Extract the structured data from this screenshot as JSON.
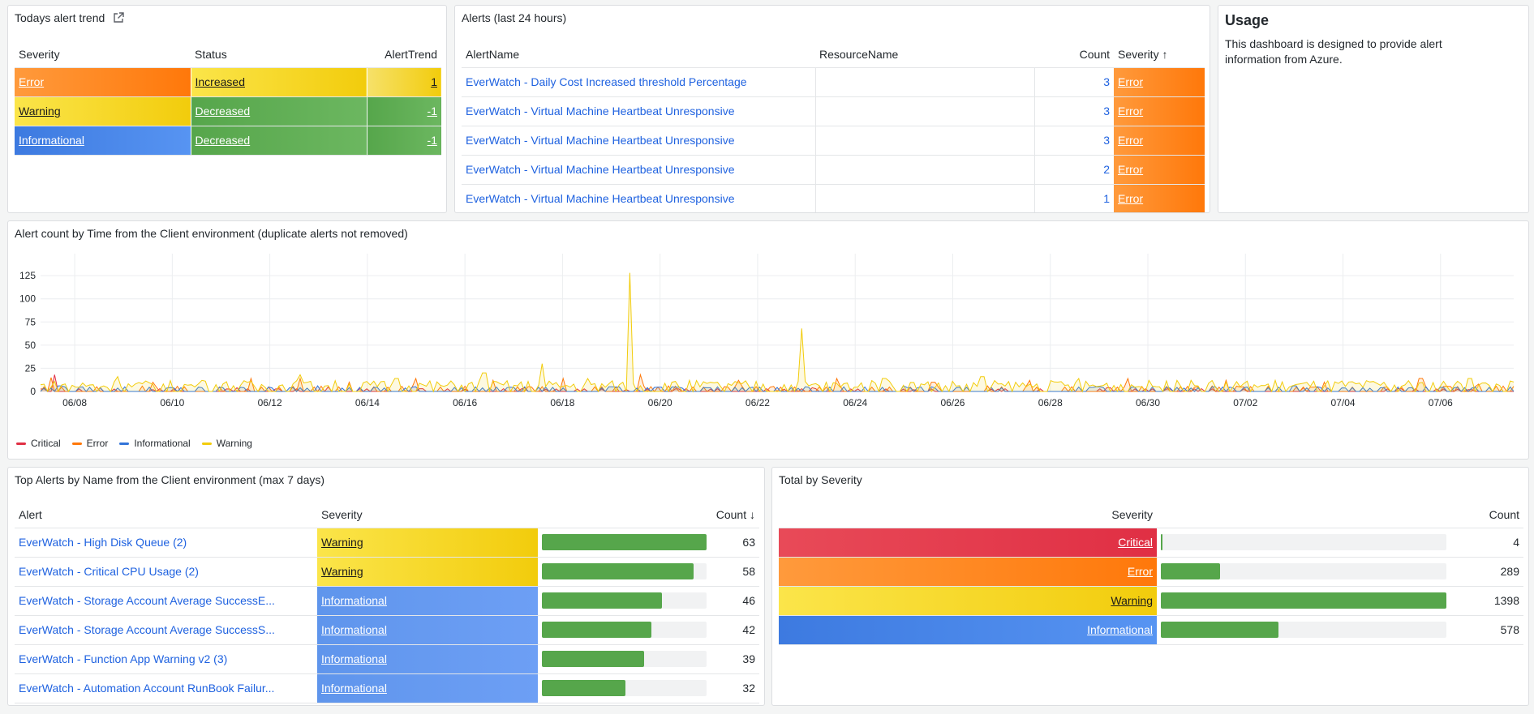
{
  "alert_trend": {
    "title": "Todays alert trend",
    "headers": [
      "Severity",
      "Status",
      "AlertTrend"
    ],
    "rows": [
      {
        "severity": "Error",
        "status": "Increased",
        "trend": "1"
      },
      {
        "severity": "Warning",
        "status": "Decreased",
        "trend": "-1"
      },
      {
        "severity": "Informational",
        "status": "Decreased",
        "trend": "-1"
      }
    ]
  },
  "alerts24": {
    "title": "Alerts (last 24 hours)",
    "headers": [
      "AlertName",
      "ResourceName",
      "Count",
      "Severity"
    ],
    "sort_arrow": "↑",
    "rows": [
      {
        "name": "EverWatch - Daily Cost Increased threshold Percentage",
        "count": "3",
        "severity": "Error"
      },
      {
        "name": "EverWatch - Virtual Machine Heartbeat Unresponsive",
        "count": "3",
        "severity": "Error"
      },
      {
        "name": "EverWatch - Virtual Machine Heartbeat Unresponsive",
        "count": "3",
        "severity": "Error"
      },
      {
        "name": "EverWatch - Virtual Machine Heartbeat Unresponsive",
        "count": "2",
        "severity": "Error"
      },
      {
        "name": "EverWatch - Virtual Machine Heartbeat Unresponsive",
        "count": "1",
        "severity": "Error"
      }
    ]
  },
  "usage": {
    "title": "Usage",
    "text": "This dashboard is designed to provide alert information from Azure."
  },
  "timeseries": {
    "title": "Alert count by Time from the Client environment (duplicate alerts not removed)",
    "legend": [
      {
        "name": "Critical",
        "color": "#e02f44"
      },
      {
        "name": "Error",
        "color": "#ff780a"
      },
      {
        "name": "Informational",
        "color": "#3274d9"
      },
      {
        "name": "Warning",
        "color": "#f2cc0c"
      }
    ]
  },
  "chart_data": {
    "type": "area",
    "title": "Alert count by Time from the Client environment (duplicate alerts not removed)",
    "x_ticks": [
      "06/08",
      "06/10",
      "06/12",
      "06/14",
      "06/16",
      "06/18",
      "06/20",
      "06/22",
      "06/24",
      "06/26",
      "06/28",
      "06/30",
      "07/02",
      "07/04",
      "07/06"
    ],
    "y_ticks": [
      "0",
      "25",
      "50",
      "75",
      "100",
      "125"
    ],
    "ylim": [
      0,
      140
    ],
    "x_range_days": [
      -0.7,
      29.5
    ],
    "grid": true,
    "legend_position": "bottom-left",
    "series": [
      {
        "name": "Critical",
        "color": "#e02f44",
        "points": [
          [
            -0.6,
            3
          ],
          [
            -0.4,
            18
          ],
          [
            0.5,
            4
          ],
          [
            1.6,
            2
          ],
          [
            3.3,
            4
          ],
          [
            5.2,
            5
          ],
          [
            7.1,
            3
          ],
          [
            9.2,
            4
          ],
          [
            11.3,
            2
          ],
          [
            13.2,
            3
          ],
          [
            15.1,
            4
          ],
          [
            17.2,
            2
          ],
          [
            19.1,
            3
          ],
          [
            21.2,
            4
          ],
          [
            23.1,
            3
          ],
          [
            25.2,
            4
          ],
          [
            27.1,
            3
          ],
          [
            28.6,
            2
          ]
        ]
      },
      {
        "name": "Error",
        "color": "#ff780a",
        "points": [
          [
            -0.5,
            15
          ],
          [
            1.6,
            10
          ],
          [
            3.6,
            14
          ],
          [
            4.6,
            14
          ],
          [
            5.6,
            10
          ],
          [
            7.0,
            14
          ],
          [
            8.6,
            12
          ],
          [
            10.0,
            14
          ],
          [
            11.6,
            18
          ],
          [
            13.6,
            12
          ],
          [
            15.6,
            14
          ],
          [
            17.6,
            10
          ],
          [
            19.6,
            12
          ],
          [
            21.6,
            14
          ],
          [
            23.6,
            12
          ],
          [
            25.6,
            10
          ],
          [
            27.6,
            14
          ],
          [
            28.8,
            8
          ]
        ]
      },
      {
        "name": "Informational",
        "color": "#3274d9",
        "points": [
          [
            -0.3,
            6
          ],
          [
            1.0,
            5
          ],
          [
            3.0,
            4
          ],
          [
            5.0,
            6
          ],
          [
            7.0,
            5
          ],
          [
            9.0,
            4
          ],
          [
            11.0,
            5
          ],
          [
            13.0,
            4
          ],
          [
            15.0,
            5
          ],
          [
            17.0,
            6
          ],
          [
            19.0,
            4
          ],
          [
            21.0,
            5
          ],
          [
            23.0,
            4
          ],
          [
            25.0,
            6
          ],
          [
            26.8,
            4
          ],
          [
            27.7,
            5
          ],
          [
            28.5,
            4
          ]
        ]
      },
      {
        "name": "Warning",
        "color": "#f2cc0c",
        "points": [
          [
            -0.4,
            10
          ],
          [
            0.9,
            16
          ],
          [
            2.6,
            12
          ],
          [
            4.6,
            18
          ],
          [
            6.6,
            14
          ],
          [
            8.4,
            20
          ],
          [
            9.6,
            30
          ],
          [
            10.5,
            14
          ],
          [
            11.4,
            128
          ],
          [
            12.6,
            12
          ],
          [
            14.9,
            68
          ],
          [
            16.6,
            14
          ],
          [
            18.6,
            16
          ],
          [
            20.6,
            14
          ],
          [
            22.6,
            12
          ],
          [
            24.6,
            12
          ],
          [
            26.6,
            10
          ],
          [
            28.6,
            14
          ]
        ]
      }
    ]
  },
  "top_alerts": {
    "title": "Top Alerts by Name from the Client environment (max 7 days)",
    "headers": [
      "Alert",
      "Severity",
      "Count"
    ],
    "sort_arrow": "↓",
    "max": 63,
    "rows": [
      {
        "name": "EverWatch - High Disk Queue (2)",
        "severity": "Warning",
        "count": 63,
        "count_text": "63"
      },
      {
        "name": "EverWatch - Critical CPU Usage (2)",
        "severity": "Warning",
        "count": 58,
        "count_text": "58"
      },
      {
        "name": "EverWatch - Storage Account Average SuccessE...",
        "severity": "Informational",
        "count": 46,
        "count_text": "46"
      },
      {
        "name": "EverWatch - Storage Account Average SuccessS...",
        "severity": "Informational",
        "count": 42,
        "count_text": "42"
      },
      {
        "name": "EverWatch - Function App Warning v2 (3)",
        "severity": "Informational",
        "count": 39,
        "count_text": "39"
      },
      {
        "name": "EverWatch - Automation Account RunBook Failur...",
        "severity": "Informational",
        "count": 32,
        "count_text": "32"
      }
    ]
  },
  "total_severity": {
    "title": "Total by Severity",
    "headers": [
      "Severity",
      "Count"
    ],
    "max": 1398,
    "rows": [
      {
        "severity": "Critical",
        "count": 4,
        "count_text": "4"
      },
      {
        "severity": "Error",
        "count": 289,
        "count_text": "289"
      },
      {
        "severity": "Warning",
        "count": 1398,
        "count_text": "1398"
      },
      {
        "severity": "Informational",
        "count": 578,
        "count_text": "578"
      }
    ]
  }
}
